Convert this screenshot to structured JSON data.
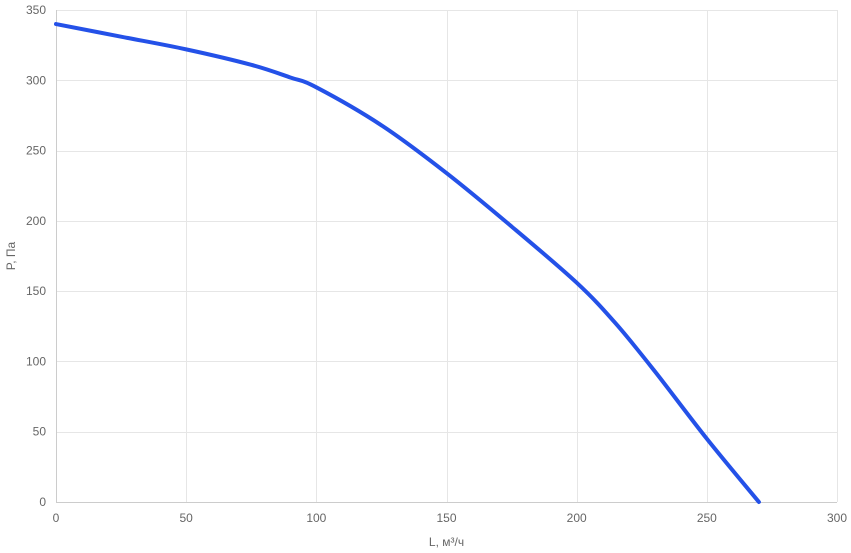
{
  "chart_data": {
    "type": "line",
    "title": "",
    "xlabel": "L, м³/ч",
    "ylabel": "P, Па",
    "xlim": [
      0,
      300
    ],
    "ylim": [
      0,
      350
    ],
    "x_ticks": [
      0,
      50,
      100,
      150,
      200,
      250,
      300
    ],
    "y_ticks": [
      0,
      50,
      100,
      150,
      200,
      250,
      300,
      350
    ],
    "grid": true,
    "legend": "none",
    "series": [
      {
        "color": "#2451e8",
        "points": [
          [
            0,
            340
          ],
          [
            25,
            331
          ],
          [
            50,
            322
          ],
          [
            75,
            311
          ],
          [
            90,
            302
          ],
          [
            100,
            295
          ],
          [
            125,
            268
          ],
          [
            150,
            234
          ],
          [
            175,
            196
          ],
          [
            200,
            156
          ],
          [
            215,
            127
          ],
          [
            230,
            93
          ],
          [
            250,
            45
          ],
          [
            270,
            0
          ]
        ]
      }
    ]
  }
}
